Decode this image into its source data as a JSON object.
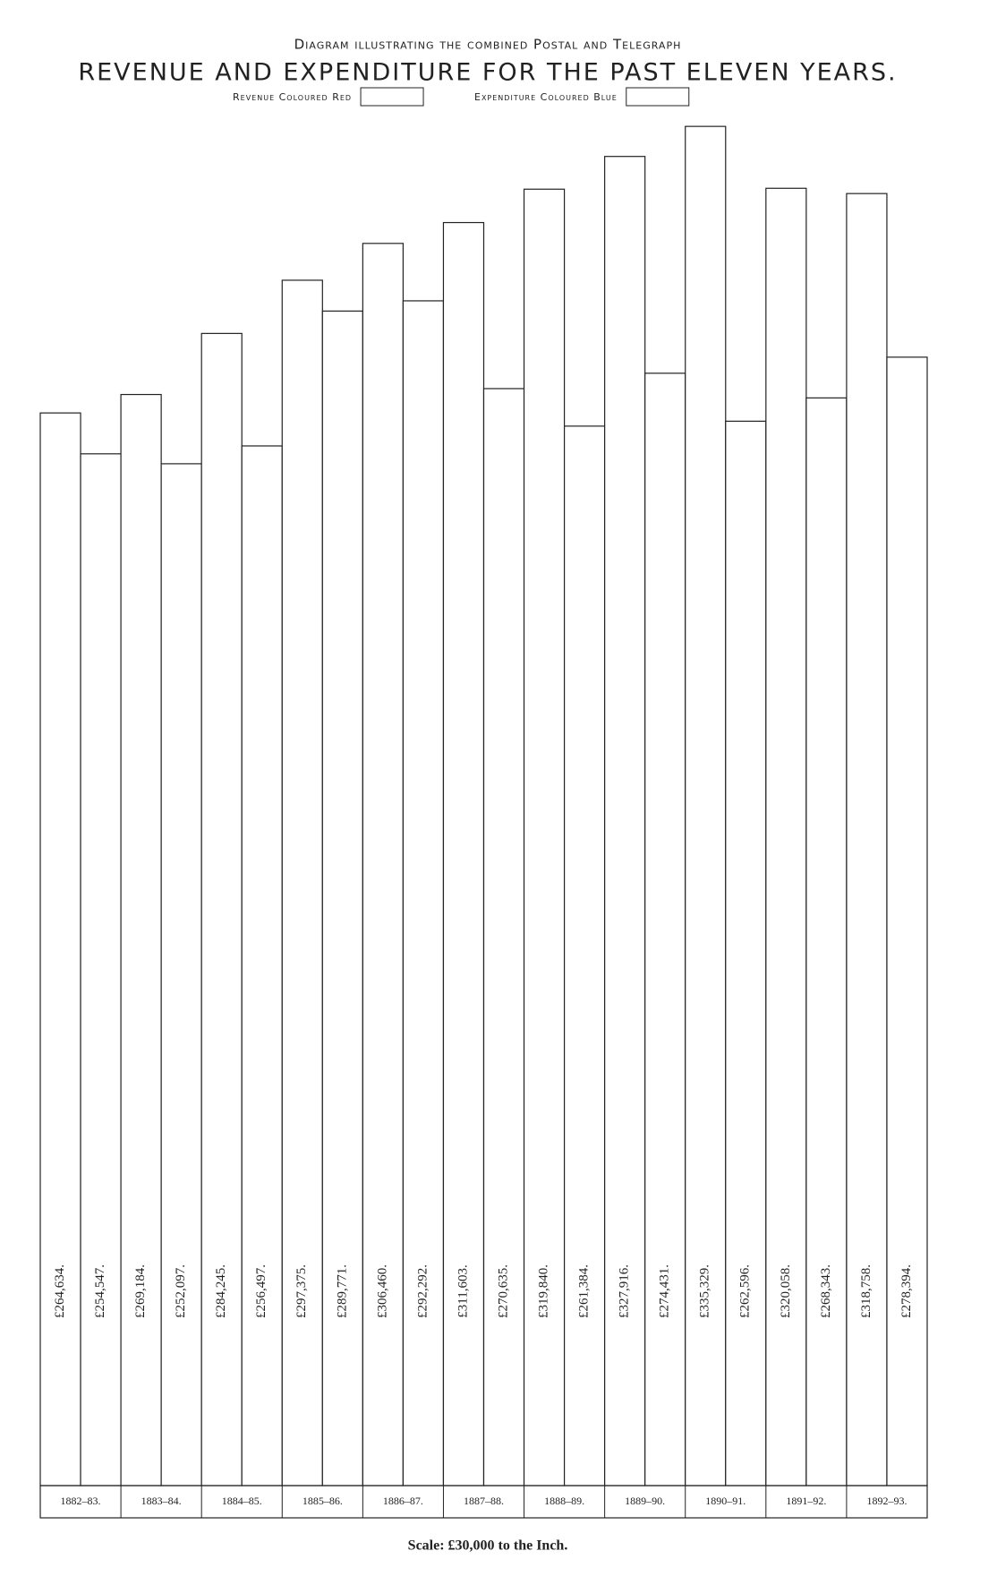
{
  "chart_data": {
    "type": "bar",
    "title": "Diagram illustrating the combined Postal and Telegraph",
    "subtitle": "REVENUE AND EXPENDITURE FOR THE PAST ELEVEN YEARS.",
    "note": "Scale: £30,000 to the Inch.",
    "categories": [
      "1882–83.",
      "1883–84.",
      "1884–85.",
      "1885–86.",
      "1886–87.",
      "1887–88.",
      "1888–89.",
      "1889–90.",
      "1890–91.",
      "1891–92.",
      "1892–93."
    ],
    "series": [
      {
        "name": "Revenue Coloured Red",
        "color": "#ffffff",
        "values": [
          264634,
          269184,
          284245,
          297375,
          306460,
          311603,
          319840,
          327916,
          335329,
          320058,
          318758
        ],
        "value_labels": [
          "£264,634.",
          "£269,184.",
          "£284,245.",
          "£297,375.",
          "£306,460.",
          "£311,603.",
          "£319,840.",
          "£327,916.",
          "£335,329.",
          "£320,058.",
          "£318,758."
        ]
      },
      {
        "name": "Expenditure Coloured Blue",
        "color": "#ffffff",
        "values": [
          254547,
          252097,
          256497,
          289771,
          292292,
          270635,
          261384,
          274431,
          262596,
          268343,
          278394
        ],
        "value_labels": [
          "£254,547.",
          "£252,097.",
          "£256,497.",
          "£289,771.",
          "£292,292.",
          "£270,635.",
          "£261,384.",
          "£274,431.",
          "£262,596.",
          "£268,343.",
          "£278,394."
        ]
      }
    ],
    "ylim": [
      0,
      340000
    ]
  }
}
